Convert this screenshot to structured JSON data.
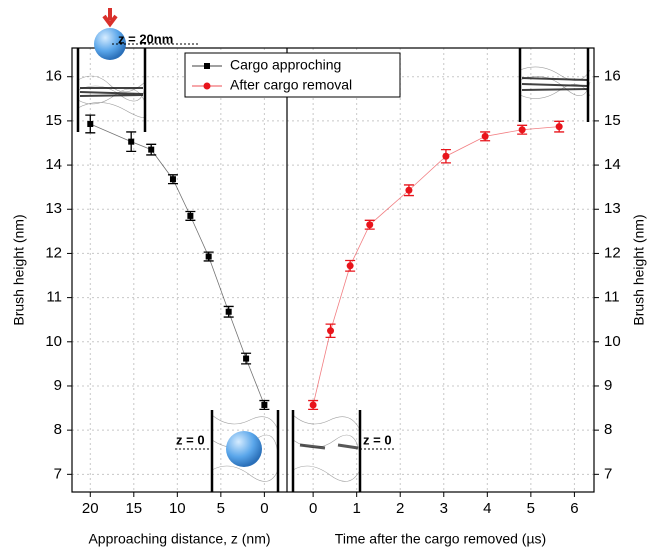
{
  "chart_data": [
    {
      "type": "scatter",
      "xlabel": "Approaching distance, z (nm)",
      "ylabel": "Brush height (nm)",
      "x": [
        20,
        15.3,
        13,
        10.5,
        8.5,
        6.4,
        4.1,
        2.1,
        0
      ],
      "series": [
        {
          "name": "Cargo approching",
          "color": "#000000",
          "values": [
            14.93,
            14.53,
            14.35,
            13.68,
            12.85,
            11.93,
            10.68,
            9.62,
            8.57
          ],
          "errors": [
            0.2,
            0.22,
            0.12,
            0.1,
            0.1,
            0.1,
            0.12,
            0.12,
            0.1
          ]
        }
      ],
      "xlim": [
        22.1,
        -2.6
      ],
      "xticks": [
        20,
        15,
        10,
        5,
        0
      ],
      "ylim": [
        6.6,
        16.65
      ],
      "yticks": [
        7,
        8,
        9,
        10,
        11,
        12,
        13,
        14,
        15,
        16
      ],
      "grid": true,
      "annotations": [
        "z = 20nm",
        "z = 0"
      ]
    },
    {
      "type": "scatter",
      "xlabel": "Time after the cargo removed (µs)",
      "ylabel": "Brush height (nm)",
      "x": [
        0,
        0.4,
        0.85,
        1.3,
        2.2,
        3.05,
        3.95,
        4.8,
        5.65
      ],
      "series": [
        {
          "name": "After cargo removal",
          "color": "#e8141b",
          "values": [
            8.57,
            10.25,
            11.72,
            12.65,
            13.43,
            14.2,
            14.65,
            14.8,
            14.87
          ],
          "errors": [
            0.1,
            0.15,
            0.12,
            0.1,
            0.12,
            0.15,
            0.1,
            0.1,
            0.12
          ]
        }
      ],
      "xlim": [
        -0.6,
        6.45
      ],
      "xticks": [
        0,
        1,
        2,
        3,
        4,
        5,
        6
      ],
      "ylim": [
        6.6,
        16.65
      ],
      "yticks": [
        7,
        8,
        9,
        10,
        11,
        12,
        13,
        14,
        15,
        16
      ],
      "grid": true,
      "annotations": [
        "z = 0"
      ]
    }
  ]
}
